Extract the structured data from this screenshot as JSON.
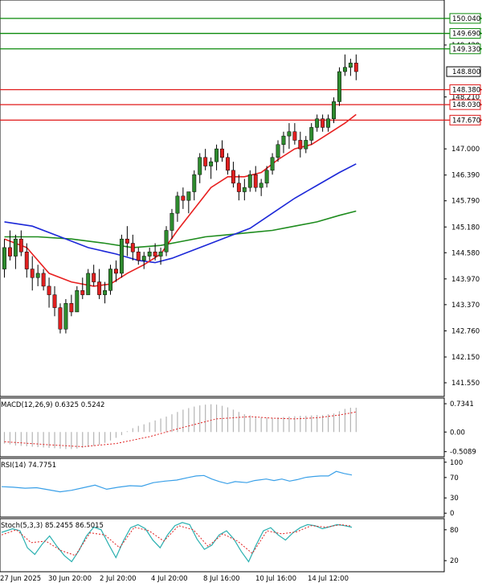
{
  "colors": {
    "background": "#ffffff",
    "frame": "#000000",
    "bull": "#2e8b2e",
    "bear": "#e02020",
    "wick": "#000000",
    "ma_fast": "#e82020",
    "ma_mid": "#1c28d8",
    "ma_slow": "#1e8c1e",
    "resistance": "#0a8a0a",
    "support": "#e01a1a",
    "macd_hist": "#b4b4b4",
    "macd_signal": "#e02020",
    "rsi_line": "#3aa0e8",
    "stoch_main": "#2ab0b0",
    "stoch_signal": "#e02020",
    "label_bg": "#ffffff"
  },
  "chart_data": [
    {
      "type": "candlestick",
      "title": "",
      "x_ticks": [
        "27 Jun 2025",
        "30 Jun 20:00",
        "2 Jul 20:00",
        "4 Jul 20:00",
        "8 Jul 16:00",
        "10 Jul 16:00",
        "14 Jul 12:00"
      ],
      "y_ticks": [
        "141.550",
        "142.150",
        "142.760",
        "143.370",
        "143.970",
        "144.580",
        "145.180",
        "145.790",
        "146.390",
        "147.000",
        "148.210",
        "149.420"
      ],
      "ylim": [
        141.25,
        150.45
      ],
      "current_price": "148.800",
      "level_labels": {
        "resistance": [
          "150.040",
          "149.690",
          "149.330"
        ],
        "support": [
          "148.380",
          "148.030",
          "147.670"
        ]
      },
      "levels": {
        "resistance": [
          150.04,
          149.69,
          149.33
        ],
        "support": [
          148.38,
          148.03,
          147.67
        ]
      },
      "ohlc": [
        [
          144.2,
          144.9,
          144.0,
          144.7
        ],
        [
          144.7,
          145.1,
          144.4,
          144.5
        ],
        [
          144.5,
          145.0,
          144.2,
          144.9
        ],
        [
          144.9,
          145.1,
          144.5,
          144.6
        ],
        [
          144.6,
          144.8,
          144.0,
          144.2
        ],
        [
          144.2,
          144.5,
          143.7,
          144.0
        ],
        [
          144.0,
          144.3,
          143.8,
          144.1
        ],
        [
          144.1,
          144.2,
          143.7,
          143.8
        ],
        [
          143.8,
          144.0,
          143.3,
          143.6
        ],
        [
          143.6,
          143.8,
          143.1,
          143.3
        ],
        [
          143.3,
          143.4,
          142.7,
          142.8
        ],
        [
          142.8,
          143.5,
          142.7,
          143.4
        ],
        [
          143.4,
          143.6,
          143.1,
          143.2
        ],
        [
          143.2,
          143.8,
          143.2,
          143.7
        ],
        [
          143.7,
          144.0,
          143.5,
          143.6
        ],
        [
          143.6,
          144.2,
          143.6,
          144.1
        ],
        [
          144.1,
          144.3,
          143.8,
          143.9
        ],
        [
          143.9,
          144.2,
          143.5,
          143.6
        ],
        [
          143.6,
          143.9,
          143.4,
          143.7
        ],
        [
          143.7,
          144.3,
          143.6,
          144.2
        ],
        [
          144.2,
          144.4,
          143.9,
          144.1
        ],
        [
          144.1,
          145.0,
          144.0,
          144.9
        ],
        [
          144.9,
          145.2,
          144.5,
          144.8
        ],
        [
          144.8,
          145.0,
          144.4,
          144.6
        ],
        [
          144.6,
          144.7,
          144.3,
          144.4
        ],
        [
          144.4,
          144.6,
          144.2,
          144.5
        ],
        [
          144.5,
          144.7,
          144.4,
          144.6
        ],
        [
          144.6,
          144.8,
          144.4,
          144.5
        ],
        [
          144.5,
          144.7,
          144.3,
          144.6
        ],
        [
          144.6,
          145.2,
          144.5,
          145.1
        ],
        [
          145.1,
          145.6,
          144.9,
          145.5
        ],
        [
          145.5,
          146.0,
          145.3,
          145.9
        ],
        [
          145.9,
          146.1,
          145.6,
          145.8
        ],
        [
          145.8,
          146.0,
          145.5,
          146.0
        ],
        [
          146.0,
          146.5,
          145.8,
          146.4
        ],
        [
          146.4,
          146.9,
          146.2,
          146.8
        ],
        [
          146.8,
          147.0,
          146.5,
          146.6
        ],
        [
          146.6,
          146.8,
          146.3,
          146.7
        ],
        [
          146.7,
          147.1,
          146.5,
          147.0
        ],
        [
          147.0,
          147.2,
          146.7,
          146.8
        ],
        [
          146.8,
          146.9,
          146.4,
          146.5
        ],
        [
          146.5,
          146.7,
          146.1,
          146.2
        ],
        [
          146.2,
          146.4,
          145.8,
          146.0
        ],
        [
          146.0,
          146.3,
          145.8,
          146.1
        ],
        [
          146.1,
          146.5,
          146.0,
          146.4
        ],
        [
          146.4,
          146.6,
          146.0,
          146.1
        ],
        [
          146.1,
          146.3,
          145.9,
          146.2
        ],
        [
          146.2,
          146.6,
          146.1,
          146.5
        ],
        [
          146.5,
          146.9,
          146.4,
          146.8
        ],
        [
          146.8,
          147.2,
          146.7,
          147.1
        ],
        [
          147.1,
          147.4,
          146.9,
          147.3
        ],
        [
          147.3,
          147.6,
          147.0,
          147.4
        ],
        [
          147.4,
          147.6,
          147.1,
          147.2
        ],
        [
          147.2,
          147.4,
          146.8,
          147.0
        ],
        [
          147.0,
          147.3,
          146.9,
          147.2
        ],
        [
          147.2,
          147.6,
          147.1,
          147.5
        ],
        [
          147.5,
          147.8,
          147.4,
          147.7
        ],
        [
          147.7,
          147.8,
          147.4,
          147.5
        ],
        [
          147.5,
          147.8,
          147.4,
          147.7
        ],
        [
          147.7,
          148.2,
          147.6,
          148.1
        ],
        [
          148.1,
          148.9,
          148.0,
          148.8
        ],
        [
          148.8,
          149.2,
          148.7,
          148.9
        ],
        [
          148.9,
          149.1,
          148.7,
          149.0
        ],
        [
          149.0,
          149.2,
          148.6,
          148.8
        ]
      ],
      "ma_fast": [
        [
          0,
          144.9
        ],
        [
          4,
          144.7
        ],
        [
          8,
          144.1
        ],
        [
          12,
          143.9
        ],
        [
          16,
          143.8
        ],
        [
          19,
          143.85
        ],
        [
          22,
          144.1
        ],
        [
          25,
          144.3
        ],
        [
          28,
          144.55
        ],
        [
          31,
          145.1
        ],
        [
          34,
          145.6
        ],
        [
          37,
          146.1
        ],
        [
          40,
          146.35
        ],
        [
          43,
          146.35
        ],
        [
          46,
          146.45
        ],
        [
          49,
          146.75
        ],
        [
          52,
          147.0
        ],
        [
          55,
          147.1
        ],
        [
          58,
          147.35
        ],
        [
          61,
          147.6
        ],
        [
          63,
          147.8
        ]
      ],
      "ma_mid": [
        [
          0,
          145.3
        ],
        [
          5,
          145.2
        ],
        [
          10,
          144.95
        ],
        [
          15,
          144.7
        ],
        [
          20,
          144.55
        ],
        [
          24,
          144.4
        ],
        [
          27,
          144.35
        ],
        [
          30,
          144.45
        ],
        [
          33,
          144.6
        ],
        [
          36,
          144.75
        ],
        [
          40,
          144.95
        ],
        [
          44,
          145.15
        ],
        [
          48,
          145.5
        ],
        [
          52,
          145.85
        ],
        [
          56,
          146.15
        ],
        [
          60,
          146.45
        ],
        [
          63,
          146.65
        ]
      ],
      "ma_slow": [
        [
          0,
          144.95
        ],
        [
          6,
          144.95
        ],
        [
          12,
          144.9
        ],
        [
          18,
          144.8
        ],
        [
          23,
          144.7
        ],
        [
          28,
          144.75
        ],
        [
          32,
          144.85
        ],
        [
          36,
          144.95
        ],
        [
          40,
          145.0
        ],
        [
          44,
          145.05
        ],
        [
          48,
          145.1
        ],
        [
          52,
          145.2
        ],
        [
          56,
          145.3
        ],
        [
          60,
          145.45
        ],
        [
          63,
          145.55
        ]
      ]
    },
    {
      "type": "bar",
      "title": "MACD(12,26,9) 0.6325 0.5242",
      "y_ticks": [
        "0.7341",
        "0.00",
        "-0.5089"
      ],
      "ylim": [
        -0.62,
        0.86
      ],
      "macd_hist": [
        -0.3,
        -0.32,
        -0.35,
        -0.36,
        -0.37,
        -0.38,
        -0.39,
        -0.4,
        -0.41,
        -0.42,
        -0.43,
        -0.44,
        -0.44,
        -0.43,
        -0.41,
        -0.39,
        -0.36,
        -0.33,
        -0.28,
        -0.22,
        -0.15,
        -0.08,
        0.02,
        0.1,
        0.16,
        0.2,
        0.25,
        0.3,
        0.35,
        0.4,
        0.46,
        0.52,
        0.58,
        0.62,
        0.66,
        0.69,
        0.71,
        0.72,
        0.71,
        0.68,
        0.64,
        0.58,
        0.52,
        0.46,
        0.43,
        0.4,
        0.38,
        0.37,
        0.37,
        0.38,
        0.39,
        0.4,
        0.41,
        0.42,
        0.42,
        0.43,
        0.44,
        0.44,
        0.46,
        0.48,
        0.54,
        0.6,
        0.63,
        0.63
      ],
      "macd_signal": [
        [
          0,
          -0.25
        ],
        [
          8,
          -0.33
        ],
        [
          14,
          -0.38
        ],
        [
          20,
          -0.3
        ],
        [
          26,
          -0.12
        ],
        [
          32,
          0.12
        ],
        [
          38,
          0.34
        ],
        [
          44,
          0.4
        ],
        [
          48,
          0.36
        ],
        [
          52,
          0.34
        ],
        [
          56,
          0.37
        ],
        [
          60,
          0.44
        ],
        [
          63,
          0.52
        ]
      ]
    },
    {
      "type": "line",
      "title": "RSI(14) 74.7751",
      "y_ticks": [
        "100",
        "70",
        "30",
        "0"
      ],
      "ylim": [
        -6,
        106
      ],
      "rsi": [
        [
          0,
          52
        ],
        [
          3,
          51
        ],
        [
          6,
          49
        ],
        [
          9,
          50
        ],
        [
          12,
          46
        ],
        [
          15,
          42
        ],
        [
          18,
          45
        ],
        [
          21,
          50
        ],
        [
          24,
          55
        ],
        [
          27,
          47
        ],
        [
          30,
          51
        ],
        [
          33,
          54
        ],
        [
          36,
          53
        ],
        [
          39,
          60
        ],
        [
          42,
          63
        ],
        [
          45,
          65
        ],
        [
          48,
          70
        ],
        [
          50,
          73
        ],
        [
          52,
          74
        ],
        [
          54,
          67
        ],
        [
          56,
          62
        ],
        [
          58,
          58
        ],
        [
          60,
          62
        ],
        [
          63,
          60
        ],
        [
          65,
          64
        ],
        [
          68,
          67
        ],
        [
          70,
          64
        ],
        [
          72,
          67
        ],
        [
          74,
          63
        ],
        [
          76,
          66
        ],
        [
          78,
          70
        ],
        [
          80,
          72
        ],
        [
          82,
          73
        ],
        [
          84,
          73
        ],
        [
          86,
          82
        ],
        [
          88,
          78
        ],
        [
          90,
          75
        ]
      ]
    },
    {
      "type": "line",
      "title": "Stoch(5,3,3) 85.2455 86.5015",
      "y_ticks": [
        "80",
        "20"
      ],
      "ylim": [
        0,
        100
      ],
      "stoch_main": [
        [
          0,
          75
        ],
        [
          3,
          82
        ],
        [
          5,
          78
        ],
        [
          7,
          45
        ],
        [
          9,
          32
        ],
        [
          11,
          52
        ],
        [
          13,
          68
        ],
        [
          15,
          48
        ],
        [
          17,
          30
        ],
        [
          19,
          18
        ],
        [
          21,
          40
        ],
        [
          23,
          68
        ],
        [
          25,
          85
        ],
        [
          27,
          80
        ],
        [
          29,
          52
        ],
        [
          31,
          26
        ],
        [
          33,
          58
        ],
        [
          35,
          84
        ],
        [
          37,
          90
        ],
        [
          39,
          82
        ],
        [
          41,
          60
        ],
        [
          43,
          45
        ],
        [
          45,
          70
        ],
        [
          47,
          88
        ],
        [
          49,
          94
        ],
        [
          51,
          90
        ],
        [
          53,
          62
        ],
        [
          55,
          42
        ],
        [
          57,
          50
        ],
        [
          59,
          70
        ],
        [
          61,
          78
        ],
        [
          63,
          62
        ],
        [
          65,
          38
        ],
        [
          67,
          18
        ],
        [
          69,
          50
        ],
        [
          71,
          78
        ],
        [
          73,
          84
        ],
        [
          75,
          70
        ],
        [
          77,
          60
        ],
        [
          79,
          74
        ],
        [
          81,
          84
        ],
        [
          83,
          90
        ],
        [
          85,
          88
        ],
        [
          87,
          82
        ],
        [
          89,
          86
        ],
        [
          91,
          90
        ],
        [
          93,
          88
        ],
        [
          95,
          85
        ]
      ],
      "stoch_signal": [
        [
          0,
          70
        ],
        [
          4,
          80
        ],
        [
          8,
          55
        ],
        [
          12,
          58
        ],
        [
          16,
          40
        ],
        [
          20,
          30
        ],
        [
          24,
          74
        ],
        [
          28,
          70
        ],
        [
          32,
          45
        ],
        [
          36,
          85
        ],
        [
          40,
          78
        ],
        [
          44,
          58
        ],
        [
          48,
          88
        ],
        [
          52,
          80
        ],
        [
          56,
          48
        ],
        [
          60,
          72
        ],
        [
          64,
          58
        ],
        [
          68,
          34
        ],
        [
          72,
          78
        ],
        [
          76,
          72
        ],
        [
          80,
          76
        ],
        [
          84,
          88
        ],
        [
          88,
          85
        ],
        [
          92,
          90
        ],
        [
          95,
          87
        ]
      ]
    }
  ]
}
